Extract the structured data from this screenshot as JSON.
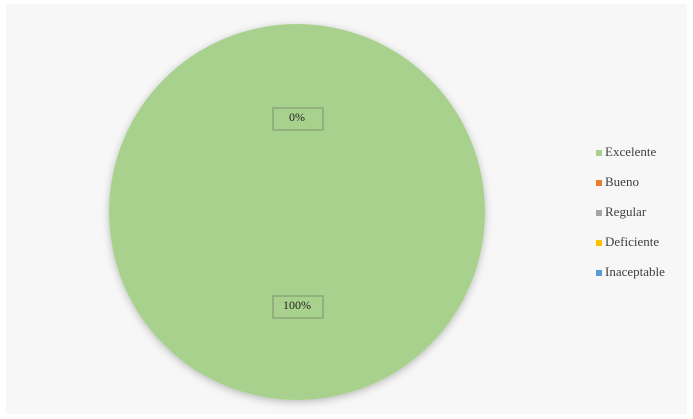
{
  "chart_data": {
    "type": "pie",
    "categories": [
      "Excelente",
      "Bueno",
      "Regular",
      "Deficiente",
      "Inaceptable"
    ],
    "values": [
      100,
      0,
      0,
      0,
      0
    ],
    "value_labels": [
      "100%",
      "0%",
      null,
      null,
      null
    ],
    "colors": [
      "#a9d18e",
      "#ed7d31",
      "#a5a5a5",
      "#ffc000",
      "#5b9bd5"
    ],
    "legend": "right"
  }
}
